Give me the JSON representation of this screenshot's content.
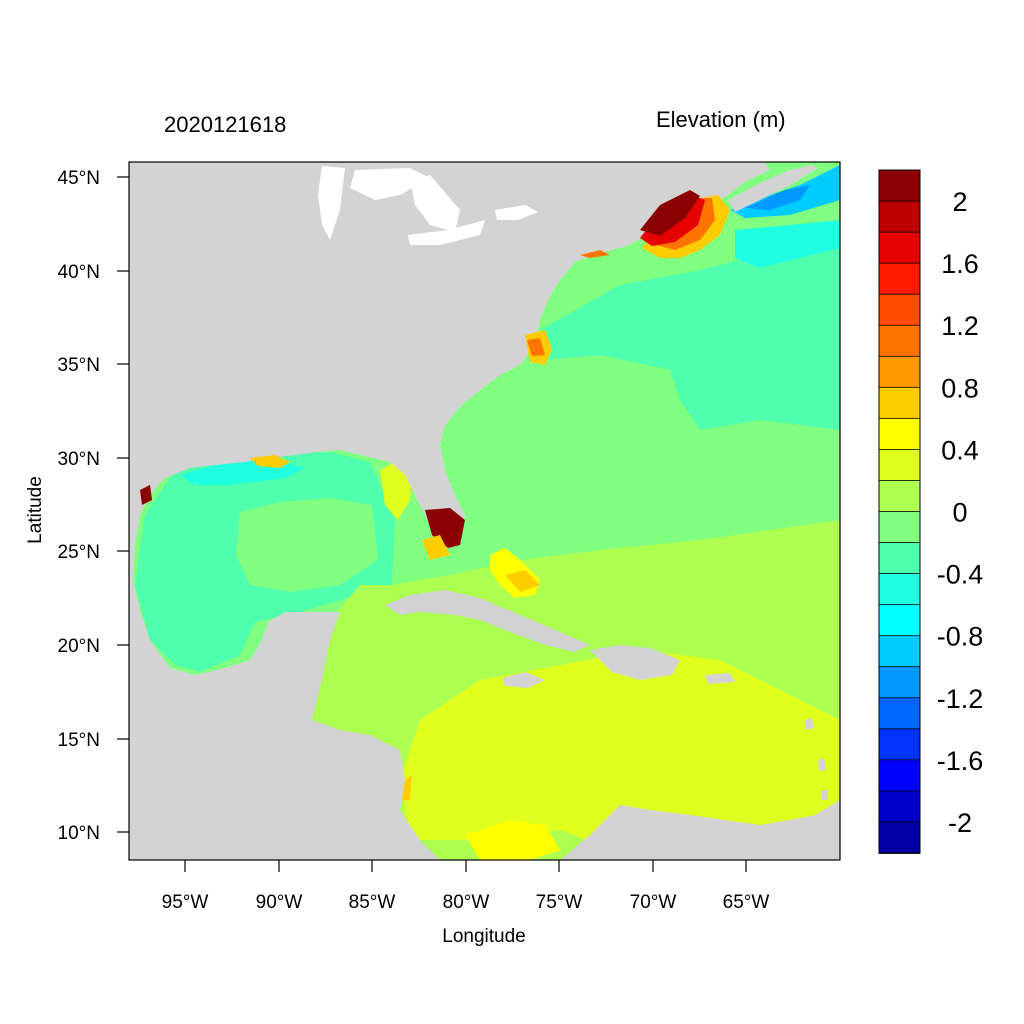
{
  "header": {
    "date": "2020121618",
    "variable": "Elevation (m)"
  },
  "axes": {
    "xlabel": "Longitude",
    "ylabel": "Latitude",
    "xticks": [
      "95°W",
      "90°W",
      "85°W",
      "80°W",
      "75°W",
      "70°W",
      "65°W"
    ],
    "yticks": [
      "45°N",
      "40°N",
      "35°N",
      "30°N",
      "25°N",
      "20°N",
      "15°N",
      "10°N"
    ]
  },
  "colorbar": {
    "labels": [
      "2",
      "1.6",
      "1.2",
      "0.8",
      "0.4",
      "0",
      "-0.4",
      "-0.8",
      "-1.2",
      "-1.6",
      "-2"
    ],
    "colors": [
      "#8b0000",
      "#bf0000",
      "#e60000",
      "#ff1a00",
      "#ff4d00",
      "#ff7300",
      "#ff9900",
      "#ffcc00",
      "#ffff00",
      "#dfff1f",
      "#adff50",
      "#80ff80",
      "#50ffad",
      "#20ffdf",
      "#00ffff",
      "#00ccff",
      "#0099ff",
      "#0066ff",
      "#0033ff",
      "#0000ff",
      "#0000cc",
      "#0000a6"
    ]
  },
  "map_colors": {
    "land": "#d3d3d3",
    "lakes": "#ffffff"
  }
}
